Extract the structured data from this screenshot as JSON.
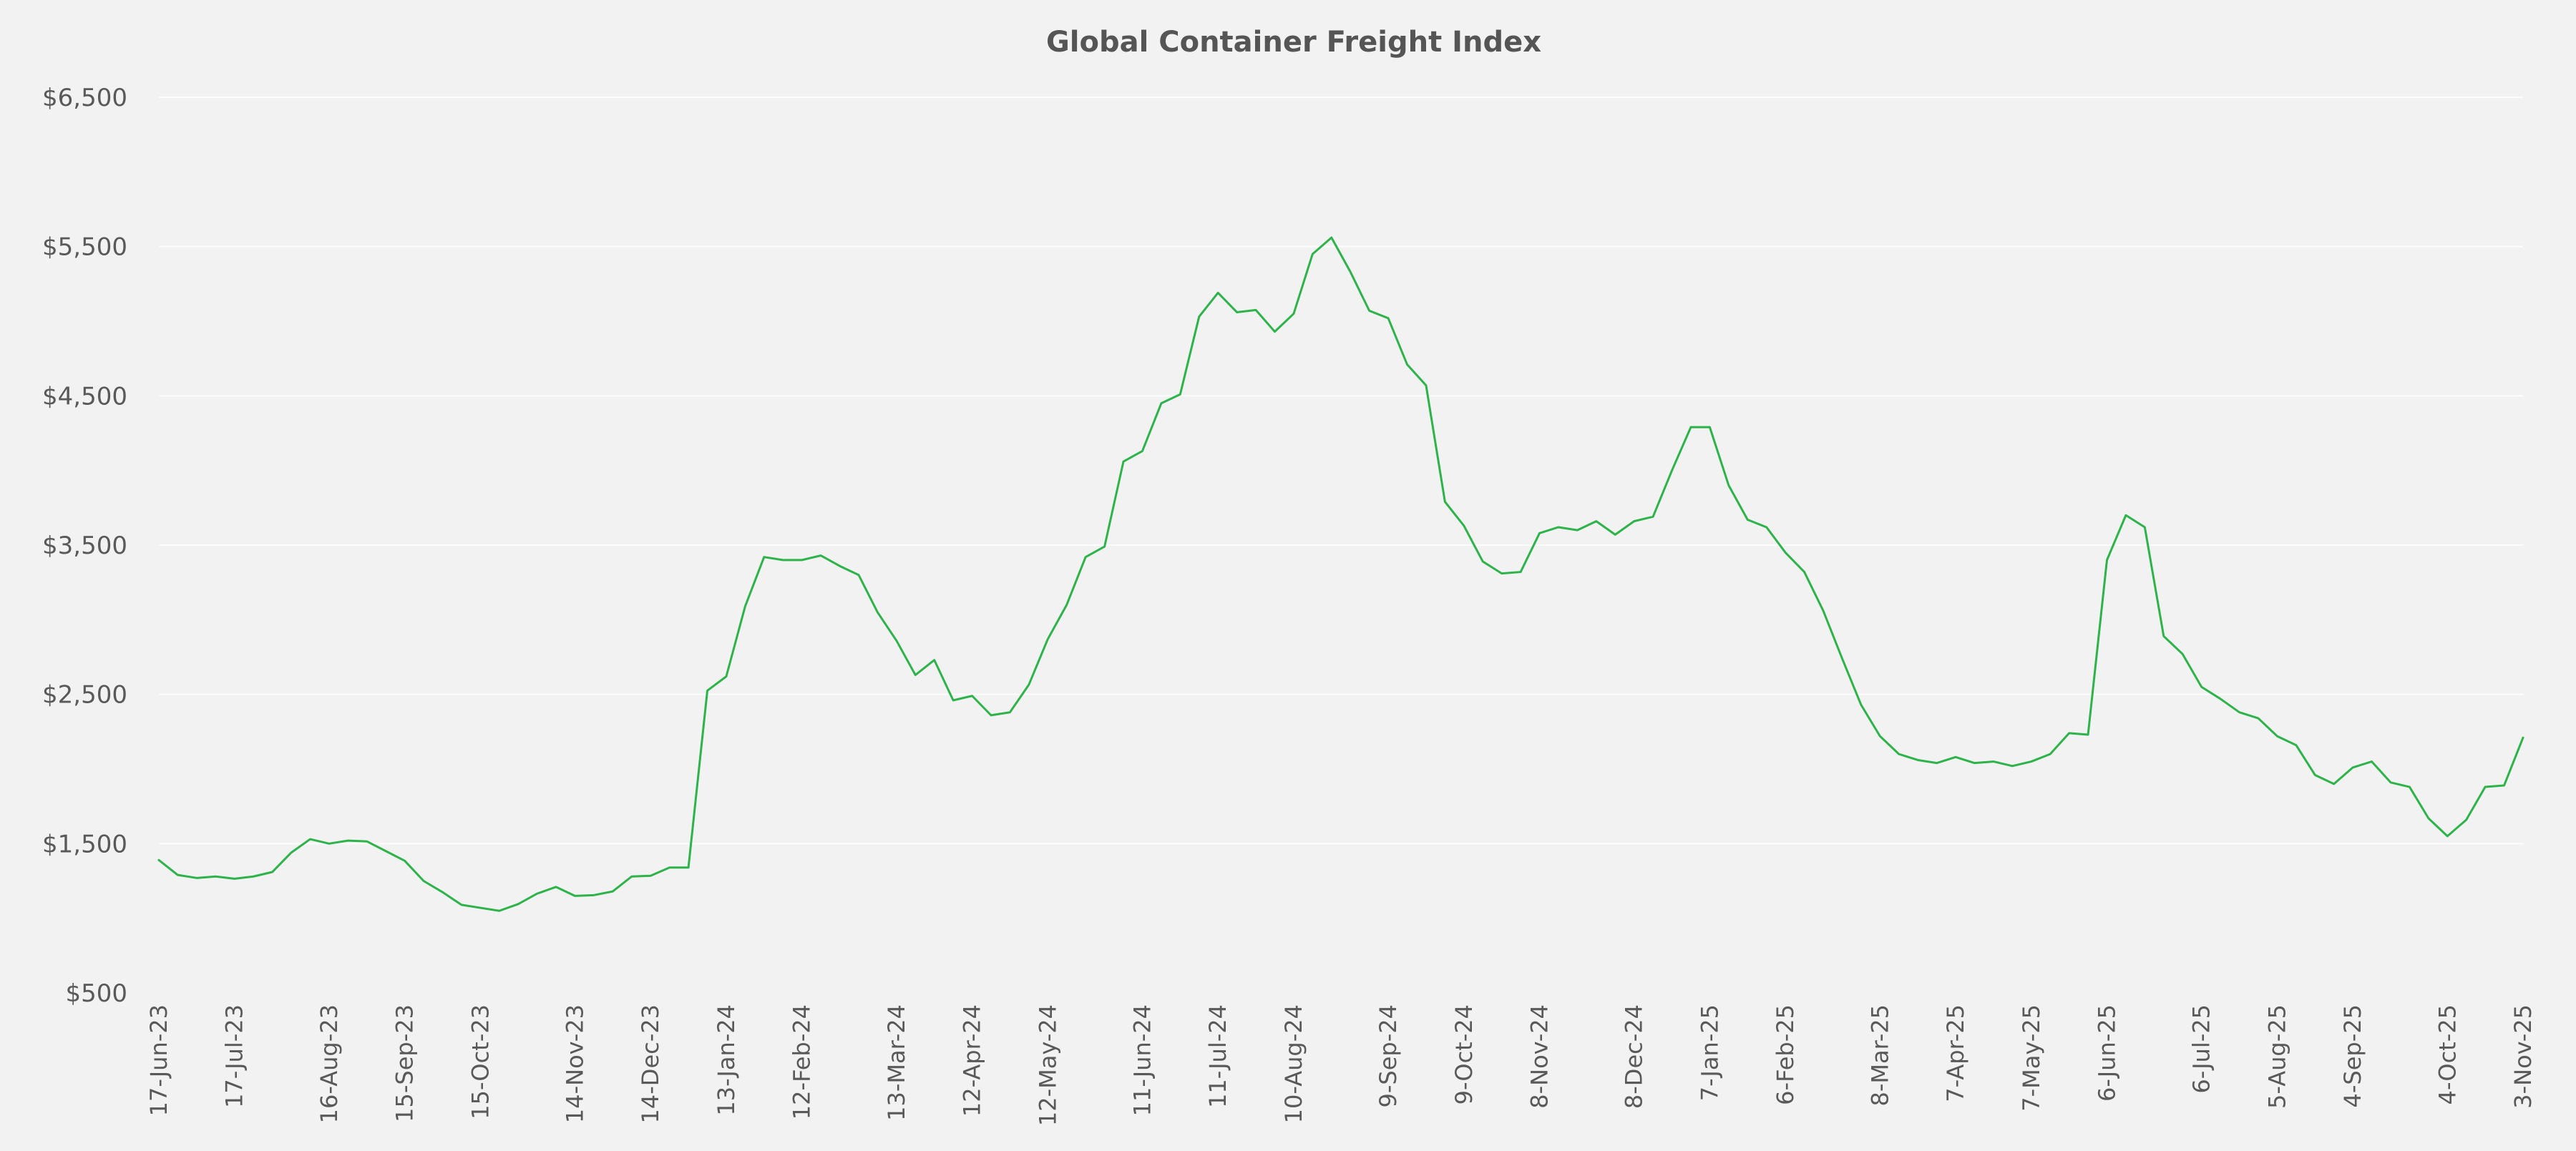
{
  "chart_data": {
    "type": "line",
    "title": "Global Container Freight Index",
    "xlabel": "",
    "ylabel": "",
    "ylim": [
      500,
      6500
    ],
    "yticks": [
      "$6,500",
      "$5,500",
      "$4,500",
      "$3,500",
      "$2,500",
      "$1,500",
      "$500"
    ],
    "ytick_values": [
      6500,
      5500,
      4500,
      3500,
      2500,
      1500,
      500
    ],
    "xtick_labels": [
      "17-Jun-23",
      "17-Jul-23",
      "16-Aug-23",
      "15-Sep-23",
      "15-Oct-23",
      "14-Nov-23",
      "14-Dec-23",
      "13-Jan-24",
      "12-Feb-24",
      "13-Mar-24",
      "12-Apr-24",
      "12-May-24",
      "11-Jun-24",
      "11-Jul-24",
      "10-Aug-24",
      "9-Sep-24",
      "9-Oct-24",
      "8-Nov-24",
      "8-Dec-24",
      "7-Jan-25",
      "6-Feb-25",
      "8-Mar-25",
      "7-Apr-25",
      "7-May-25",
      "6-Jun-25",
      "6-Jul-25",
      "5-Aug-25",
      "4-Sep-25",
      "4-Oct-25",
      "3-Nov-25"
    ],
    "grid": true,
    "legend": "none",
    "series": [
      {
        "color": "#2db34a",
        "values": [
          1390,
          1290,
          1270,
          1280,
          1265,
          1280,
          1310,
          1440,
          1530,
          1500,
          1520,
          1515,
          1450,
          1385,
          1250,
          1175,
          1090,
          1070,
          1050,
          1095,
          1165,
          1210,
          1150,
          1155,
          1180,
          1280,
          1285,
          1340,
          1340,
          2525,
          2620,
          3090,
          3420,
          3400,
          3400,
          3430,
          3360,
          3300,
          3050,
          2860,
          2630,
          2730,
          2460,
          2490,
          2360,
          2380,
          2565,
          2870,
          3100,
          3420,
          3490,
          4060,
          4130,
          4450,
          4510,
          5030,
          5190,
          5060,
          5075,
          4930,
          5050,
          5450,
          5560,
          5330,
          5070,
          5020,
          4710,
          4570,
          3790,
          3630,
          3390,
          3310,
          3320,
          3580,
          3620,
          3600,
          3660,
          3570,
          3660,
          3690,
          4000,
          4290,
          4290,
          3900,
          3670,
          3620,
          3450,
          3320,
          3060,
          2740,
          2430,
          2220,
          2100,
          2060,
          2040,
          2080,
          2040,
          2050,
          2020,
          2050,
          2100,
          2240,
          2230,
          3400,
          3700,
          3620,
          2890,
          2770,
          2550,
          2470,
          2380,
          2340,
          2220,
          2160,
          1960,
          1900,
          2010,
          2050,
          1910,
          1880,
          1670,
          1550,
          1660,
          1880,
          1890,
          2210
        ]
      }
    ]
  }
}
